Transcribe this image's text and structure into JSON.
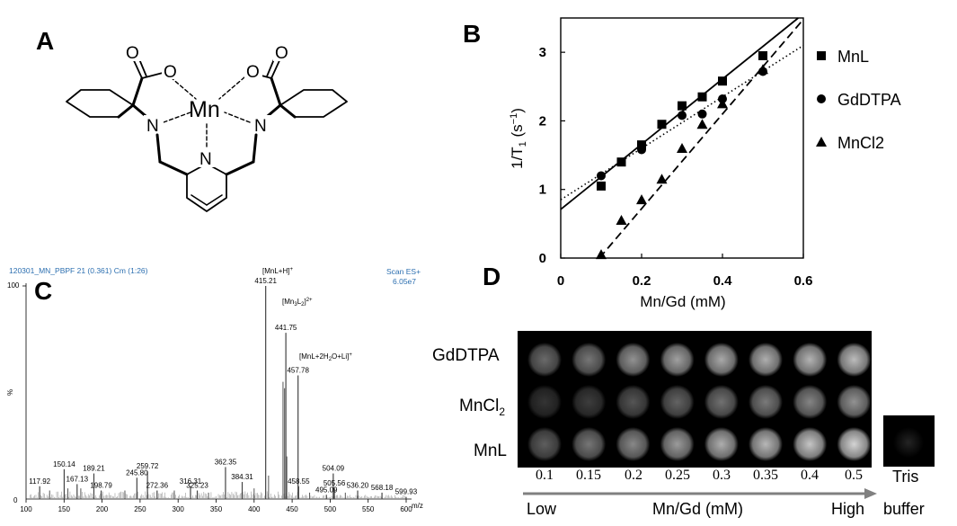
{
  "panels": {
    "a": "A",
    "b": "B",
    "c": "C",
    "d": "D"
  },
  "structure": {
    "metal": "Mn",
    "o_left_carbonyl": "O",
    "o_left": "O",
    "o_right": "O",
    "o_right_carbonyl": "O",
    "n_left": "N",
    "n_right": "N",
    "n_pyridine": "N"
  },
  "chart_b": {
    "ylabel_main": "1/T",
    "ylabel_sub": "1",
    "ylabel_unit": " (s",
    "ylabel_sup": "−1",
    "ylabel_close": ")",
    "xlabel": "Mn/Gd (mM)",
    "legend": [
      {
        "label": "MnL",
        "marker": "square"
      },
      {
        "label": "GdDTPA",
        "marker": "circle"
      },
      {
        "label": "MnCl2",
        "marker": "triangle"
      }
    ]
  },
  "chart_c": {
    "header_left": "120301_MN_PBPF 21 (0.361) Cm (1:26)",
    "header_right_1": "Scan ES+",
    "header_right_2": "6.05e7",
    "y_top": "100",
    "y_bottom": "0",
    "y_axis_label": "%",
    "x_unit": "m/z",
    "ann_mnlh": "[MnL+H]",
    "ann_mnlh_sup": "+",
    "ann_mn3l2": "[Mn",
    "ann_mn3l2_sub1": "3",
    "ann_mn3l2_mid": "L",
    "ann_mn3l2_sub2": "2",
    "ann_mn3l2_close": "]",
    "ann_mn3l2_sup": "2+",
    "ann_mnl2h2o_a": "[MnL+2H",
    "ann_mnl2h2o_sub": "2",
    "ann_mnl2h2o_b": "O+Li]",
    "ann_mnl2h2o_sup": "+"
  },
  "mri_d": {
    "rows": [
      {
        "label": "GdDTPA",
        "sub": ""
      },
      {
        "label": "MnCl",
        "sub": "2"
      },
      {
        "label": "MnL",
        "sub": ""
      }
    ],
    "concentrations": [
      "0.1",
      "0.15",
      "0.2",
      "0.25",
      "0.3",
      "0.35",
      "0.4",
      "0.5"
    ],
    "axis_low": "Low",
    "axis_mid": "Mn/Gd (mM)",
    "axis_high": "High",
    "tris_1": "Tris",
    "tris_2": "buffer",
    "intensity": [
      [
        0.45,
        0.5,
        0.62,
        0.68,
        0.72,
        0.74,
        0.76,
        0.8
      ],
      [
        0.22,
        0.26,
        0.36,
        0.42,
        0.48,
        0.52,
        0.56,
        0.62
      ],
      [
        0.4,
        0.5,
        0.58,
        0.66,
        0.74,
        0.78,
        0.84,
        0.9
      ]
    ],
    "tris_intensity": 0.14
  },
  "chart_data": [
    {
      "type": "scatter",
      "panel": "B",
      "title": "",
      "xlabel": "Mn/Gd (mM)",
      "ylabel": "1/T1 (s-1)",
      "xlim": [
        0,
        0.6
      ],
      "ylim": [
        0,
        3.5
      ],
      "x_ticks": [
        "0",
        "0.2",
        "0.4",
        "0.6"
      ],
      "y_ticks": [
        "0",
        "1",
        "2",
        "3"
      ],
      "series": [
        {
          "name": "MnL",
          "marker": "square",
          "line": "solid",
          "x": [
            0.1,
            0.15,
            0.2,
            0.25,
            0.3,
            0.35,
            0.4,
            0.5
          ],
          "y": [
            1.05,
            1.4,
            1.65,
            1.95,
            2.22,
            2.35,
            2.58,
            2.95
          ],
          "fit": {
            "slope": 4.75,
            "intercept": 0.71
          }
        },
        {
          "name": "GdDTPA",
          "marker": "circle",
          "line": "dotted",
          "x": [
            0.1,
            0.2,
            0.3,
            0.35,
            0.4,
            0.5
          ],
          "y": [
            1.2,
            1.58,
            2.08,
            2.1,
            2.32,
            2.72
          ],
          "fit": {
            "slope": 3.75,
            "intercept": 0.85
          }
        },
        {
          "name": "MnCl2",
          "marker": "triangle",
          "line": "dashed",
          "x": [
            0.1,
            0.15,
            0.2,
            0.25,
            0.3,
            0.35,
            0.4,
            0.5
          ],
          "y": [
            0.05,
            0.55,
            0.85,
            1.15,
            1.6,
            1.95,
            2.25,
            2.75
          ],
          "fit": {
            "slope": 6.9,
            "intercept": -0.66
          }
        }
      ]
    },
    {
      "type": "bar",
      "panel": "C",
      "title": "",
      "xlabel": "m/z",
      "ylabel": "%",
      "xlim": [
        100,
        600
      ],
      "ylim": [
        0,
        100
      ],
      "x_ticks": [
        "100",
        "150",
        "200",
        "250",
        "300",
        "350",
        "400",
        "450",
        "500",
        "550",
        "600"
      ],
      "peaks": [
        {
          "mz": 117.92,
          "label": "117.92",
          "y": 6
        },
        {
          "mz": 150.14,
          "label": "150.14",
          "y": 14
        },
        {
          "mz": 167.13,
          "label": "167.13",
          "y": 7
        },
        {
          "mz": 189.21,
          "label": "189.21",
          "y": 12
        },
        {
          "mz": 198.79,
          "label": "198.79",
          "y": 4
        },
        {
          "mz": 245.8,
          "label": "245.80",
          "y": 10
        },
        {
          "mz": 259.72,
          "label": "259.72",
          "y": 13
        },
        {
          "mz": 272.36,
          "label": "272.36",
          "y": 4
        },
        {
          "mz": 316.31,
          "label": "316.31",
          "y": 6
        },
        {
          "mz": 325.23,
          "label": "325.23",
          "y": 4
        },
        {
          "mz": 362.35,
          "label": "362.35",
          "y": 15
        },
        {
          "mz": 384.31,
          "label": "384.31",
          "y": 8
        },
        {
          "mz": 415.21,
          "label": "415.21",
          "y": 100
        },
        {
          "mz": 441.75,
          "label": "441.75",
          "y": 78
        },
        {
          "mz": 457.78,
          "label": "457.78",
          "y": 58
        },
        {
          "mz": 458.55,
          "label": "458.55",
          "y": 6
        },
        {
          "mz": 495.09,
          "label": "495.09",
          "y": 2
        },
        {
          "mz": 504.09,
          "label": "504.09",
          "y": 12
        },
        {
          "mz": 505.56,
          "label": "505.56",
          "y": 5
        },
        {
          "mz": 536.2,
          "label": "536.20",
          "y": 4
        },
        {
          "mz": 568.18,
          "label": "568.18",
          "y": 3
        },
        {
          "mz": 599.93,
          "label": "599.93",
          "y": 1
        }
      ],
      "extra_bars": [
        {
          "mz": 438,
          "y": 55
        },
        {
          "mz": 440,
          "y": 52
        },
        {
          "mz": 443,
          "y": 20
        },
        {
          "mz": 419,
          "y": 11
        },
        {
          "mz": 131,
          "y": 4
        },
        {
          "mz": 155,
          "y": 5
        },
        {
          "mz": 172,
          "y": 5
        },
        {
          "mz": 230,
          "y": 4
        },
        {
          "mz": 295,
          "y": 4
        },
        {
          "mz": 340,
          "y": 3
        },
        {
          "mz": 400,
          "y": 5
        },
        {
          "mz": 473,
          "y": 3
        },
        {
          "mz": 520,
          "y": 3
        }
      ]
    }
  ]
}
